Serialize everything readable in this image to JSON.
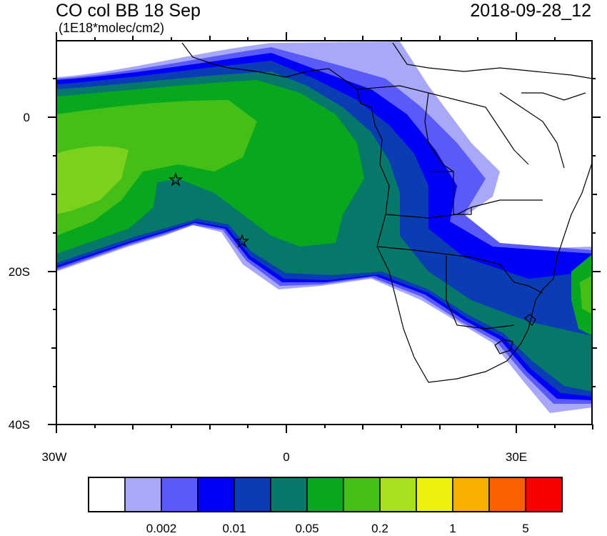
{
  "title": "CO col BB 18 Sep",
  "units": "(1E18*molec/cm2)",
  "datetime": "2018-09-28_12",
  "y_ticks": [
    "0",
    "20S",
    "40S"
  ],
  "x_ticks": [
    "30W",
    "0",
    "30E"
  ],
  "colorbar": {
    "colors": [
      "#ffffff",
      "#a8a8f8",
      "#5a5af8",
      "#0000f8",
      "#0a3cb4",
      "#06786a",
      "#08a81e",
      "#46be18",
      "#a8e020",
      "#f0f010",
      "#f8b000",
      "#f86000",
      "#f80000"
    ],
    "labels": [
      "0.002",
      "0.01",
      "0.05",
      "0.2",
      "1",
      "5"
    ]
  },
  "markers": [
    "star",
    "star"
  ]
}
